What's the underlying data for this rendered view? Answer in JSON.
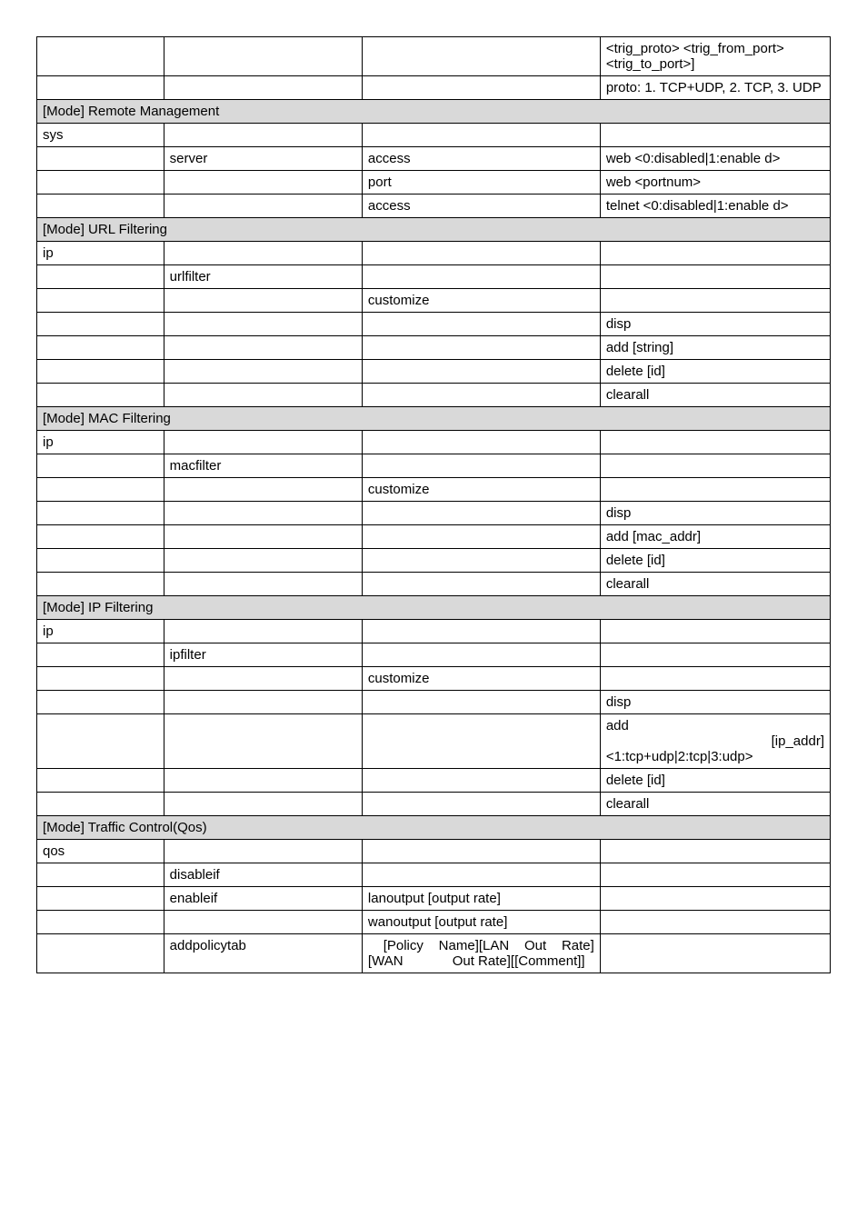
{
  "row1": {
    "c4": "<trig_proto> <trig_from_port> <trig_to_port>]"
  },
  "row2": {
    "c4": "proto: 1. TCP+UDP, 2. TCP, 3. UDP"
  },
  "sec1": {
    "title": "[Mode]   Remote Management"
  },
  "r_sys": {
    "c1": "sys"
  },
  "r_server": {
    "c2": "server",
    "c3": "access",
    "c4": "web <0:disabled|1:enable d>"
  },
  "r_port": {
    "c3": "port",
    "c4": "web <portnum>"
  },
  "r_telnet": {
    "c3": "access",
    "c4": "telnet <0:disabled|1:enable d>"
  },
  "sec2": {
    "title": "[Mode]   URL Filtering"
  },
  "r_ip1": {
    "c1": "ip"
  },
  "r_urlfilter": {
    "c2": "urlfilter"
  },
  "r_urlcust": {
    "c3": "customize"
  },
  "r_urldisp": {
    "c4": "disp"
  },
  "r_urladd": {
    "c4": "add [string]"
  },
  "r_urldel": {
    "c4": "delete [id]"
  },
  "r_urlclr": {
    "c4": "clearall"
  },
  "sec3": {
    "title": "[Mode]   MAC Filtering"
  },
  "r_ip2": {
    "c1": "ip"
  },
  "r_macfilter": {
    "c2": "macfilter"
  },
  "r_maccust": {
    "c3": "customize"
  },
  "r_macdisp": {
    "c4": "disp"
  },
  "r_macadd": {
    "c4": "add [mac_addr]"
  },
  "r_macdel": {
    "c4": "delete [id]"
  },
  "r_macclr": {
    "c4": "clearall"
  },
  "sec4": {
    "title": "[Mode]   IP Filtering"
  },
  "r_ip3": {
    "c1": "ip"
  },
  "r_ipfilter": {
    "c2": "ipfilter"
  },
  "r_ipcust": {
    "c3": "customize"
  },
  "r_ipdisp": {
    "c4": "disp"
  },
  "r_ipadd_a": "add",
  "r_ipadd_b": "[ip_addr] <1:tcp+udp|2:tcp|3:udp>",
  "r_ipdel": {
    "c4": "delete [id]"
  },
  "r_ipclr": {
    "c4": "clearall"
  },
  "sec5": {
    "title": "[Mode]   Traffic Control(Qos)"
  },
  "r_qos": {
    "c1": "qos"
  },
  "r_disableif": {
    "c2": "disableif"
  },
  "r_enableif": {
    "c2": "enableif",
    "c3": "lanoutput [output rate]"
  },
  "r_wanout": {
    "c3": "wanoutput [output rate]"
  },
  "r_addpolicy": {
    "c2": "addpolicytab",
    "c3a": " [Policy Name][LAN Out Rate][WAN",
    "c3b": "Out Rate][[Comment]]"
  }
}
